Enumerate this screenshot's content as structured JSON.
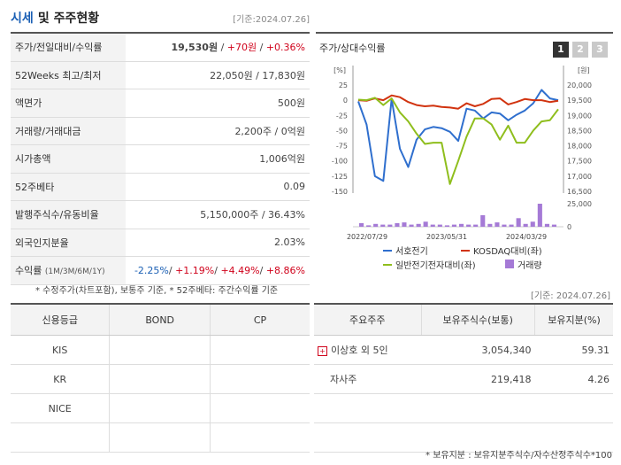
{
  "header": {
    "title_a": "시세",
    "title_b": "및 주주현황",
    "ref": "[기준:2024.07.26]"
  },
  "quote_rows": [
    {
      "label": "주가/전일대비/수익률",
      "price": "19,530원",
      "sep1": " / ",
      "change": "+70원",
      "sep2": " / ",
      "rate": "+0.36%"
    },
    {
      "label": "52Weeks 최고/최저",
      "value": "22,050원 / 17,830원"
    },
    {
      "label": "액면가",
      "value": "500원"
    },
    {
      "label": "거래량/거래대금",
      "value": "2,200주 / 0억원"
    },
    {
      "label": "시가총액",
      "value": "1,006억원"
    },
    {
      "label": "52주베타",
      "value": "0.09"
    },
    {
      "label": "발행주식수/유동비율",
      "value": "5,150,000주 / 36.43%"
    },
    {
      "label": "외국인지분율",
      "value": "2.03%"
    },
    {
      "label": "수익률",
      "label_sub": "(1M/3M/6M/1Y)",
      "r1": "-2.25%",
      "r2": "+1.19%",
      "r3": "+4.49%",
      "r4": "+8.86%"
    }
  ],
  "notes": {
    "quote_note": "* 수정주가(차트포함), 보통주 기준, * 52주베타: 주간수익률 기준",
    "ref2": "[기준: 2024.07.26]",
    "holder_note": "* 보유지분 : 보유지분주식수/자수산정주식수*100"
  },
  "chart": {
    "title": "주가/상대수익률",
    "tabs": [
      "1",
      "2",
      "3"
    ]
  },
  "chart_data": {
    "type": "line",
    "left_axis_unit": "[%]",
    "right_axis_unit": "[원]",
    "left_ticks": [
      "25",
      "0",
      "-25",
      "-50",
      "-75",
      "-100",
      "-125",
      "-150"
    ],
    "right_ticks": [
      "20,000",
      "19,500",
      "19,000",
      "18,500",
      "18,000",
      "17,500",
      "17,000",
      "16,500"
    ],
    "volume_ticks": [
      "25,000",
      "0"
    ],
    "x_labels": [
      "2022/07/29",
      "2023/05/31",
      "2024/03/29"
    ],
    "ylim_left": [
      -150,
      25
    ],
    "ylim_right": [
      16500,
      20000
    ],
    "series": [
      {
        "name": "서호전기",
        "color": "#2f6fce",
        "values": [
          -2,
          -40,
          -125,
          -133,
          2,
          -80,
          -110,
          -65,
          -48,
          -44,
          -46,
          -52,
          -67,
          -14,
          -17,
          -30,
          -20,
          -22,
          -33,
          -24,
          -17,
          -5,
          17,
          3,
          0
        ]
      },
      {
        "name": "KOSDAQ대비(좌)",
        "color": "#d1330f",
        "values": [
          0,
          -1,
          3,
          0,
          8,
          5,
          -3,
          -8,
          -10,
          -9,
          -11,
          -12,
          -14,
          -5,
          -10,
          -6,
          2,
          3,
          -7,
          -3,
          2,
          0,
          0,
          -3,
          -1
        ]
      },
      {
        "name": "일반전기전자대비(좌)",
        "color": "#8fbe1d",
        "values": [
          1,
          0,
          4,
          -8,
          3,
          -20,
          -35,
          -55,
          -72,
          -70,
          -70,
          -138,
          -100,
          -60,
          -30,
          -30,
          -40,
          -65,
          -42,
          -70,
          -70,
          -50,
          -35,
          -33,
          -15
        ]
      }
    ],
    "volume": {
      "name": "거래량",
      "color": "#a57ad6",
      "values": [
        5,
        2,
        4,
        3,
        3,
        5,
        6,
        3,
        4,
        7,
        3,
        3,
        2,
        3,
        4,
        3,
        3,
        16,
        4,
        6,
        3,
        3,
        12,
        4,
        7,
        32,
        4,
        3
      ]
    }
  },
  "credit": {
    "headers": [
      "신용등급",
      "BOND",
      "CP"
    ],
    "rows": [
      [
        "KIS",
        "",
        ""
      ],
      [
        "KR",
        "",
        ""
      ],
      [
        "NICE",
        "",
        ""
      ],
      [
        "",
        "",
        ""
      ]
    ]
  },
  "holders": {
    "headers": [
      "주요주주",
      "보유주식수(보통)",
      "보유지분(%)"
    ],
    "rows": [
      {
        "name": "이상호 외 5인",
        "shares": "3,054,340",
        "pct": "59.31"
      },
      {
        "name": "자사주",
        "shares": "219,418",
        "pct": "4.26"
      },
      {
        "name": "",
        "shares": "",
        "pct": ""
      },
      {
        "name": "",
        "shares": "",
        "pct": ""
      }
    ]
  }
}
